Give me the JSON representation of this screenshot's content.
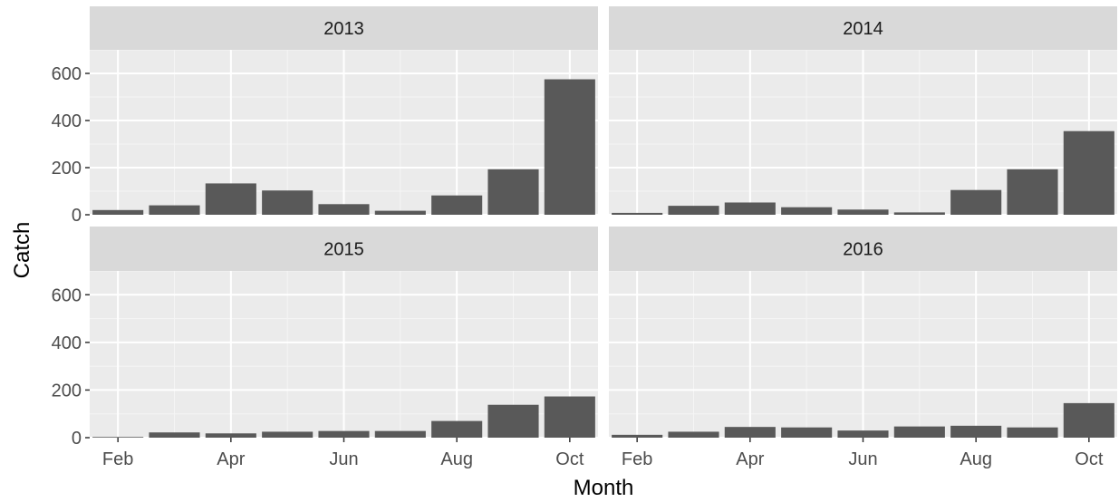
{
  "chart_data": {
    "type": "bar",
    "xlabel": "Month",
    "ylabel": "Catch",
    "ylim": [
      0,
      700
    ],
    "yticks": [
      0,
      200,
      400,
      600
    ],
    "months": [
      2,
      3,
      4,
      5,
      6,
      7,
      8,
      9,
      10
    ],
    "xtick_labels": [
      {
        "month": 2,
        "label": "Feb"
      },
      {
        "month": 4,
        "label": "Apr"
      },
      {
        "month": 6,
        "label": "Jun"
      },
      {
        "month": 8,
        "label": "Aug"
      },
      {
        "month": 10,
        "label": "Oct"
      }
    ],
    "facets": [
      {
        "name": "2013",
        "values": [
          20,
          40,
          133,
          103,
          45,
          17,
          82,
          193,
          575
        ]
      },
      {
        "name": "2014",
        "values": [
          8,
          38,
          52,
          32,
          22,
          10,
          105,
          193,
          355
        ]
      },
      {
        "name": "2015",
        "values": [
          3,
          22,
          18,
          25,
          28,
          28,
          70,
          138,
          173
        ]
      },
      {
        "name": "2016",
        "values": [
          12,
          25,
          45,
          43,
          30,
          47,
          50,
          43,
          145
        ]
      }
    ],
    "colors": {
      "bar": "#595959",
      "panel": "#ebebeb",
      "strip": "#d9d9d9",
      "grid_major": "#ffffff",
      "grid_minor": "#f5f5f5",
      "tick": "#333333"
    },
    "grid": true,
    "layout": "2x2 facets"
  }
}
